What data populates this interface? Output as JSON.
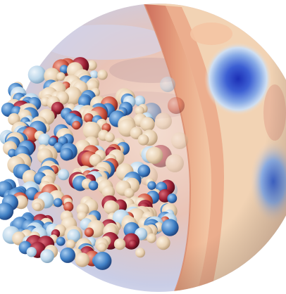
{
  "image": {
    "subject_icon": "protein-surface-in-potential-sphere",
    "colors": {
      "background": "#ffffff",
      "negative": "#1c2fb6",
      "negative_light": "#7aa6e6",
      "neutral": "#efe0cf",
      "positive": "#c9473a",
      "positive_dark": "#8e1f2a",
      "sphere_edge": "#d98a6c"
    }
  }
}
